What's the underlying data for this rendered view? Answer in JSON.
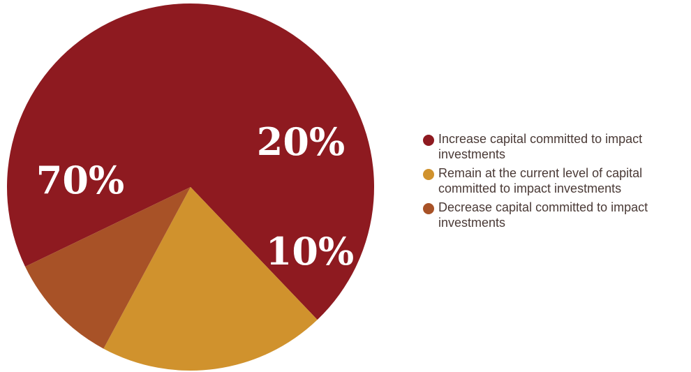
{
  "chart_data": {
    "type": "pie",
    "title": "",
    "slices": [
      {
        "label": "Increase capital committed to impact investments",
        "value": 70,
        "display": "70%",
        "color": "#8e1a20"
      },
      {
        "label": "Remain at the current level of capital committed to impact investments",
        "value": 20,
        "display": "20%",
        "color": "#d0922d"
      },
      {
        "label": "Decrease capital committed to impact investments",
        "value": 10,
        "display": "10%",
        "color": "#a85227"
      }
    ],
    "legend_position": "right"
  }
}
